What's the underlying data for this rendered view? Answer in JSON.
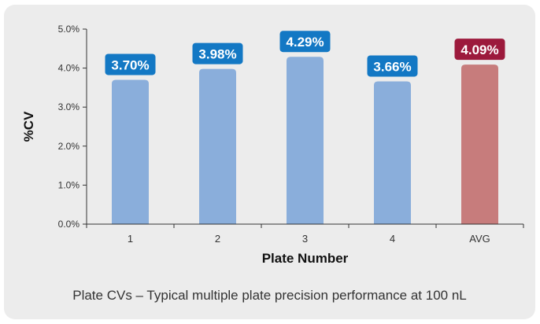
{
  "chart_data": {
    "type": "bar",
    "categories": [
      "1",
      "2",
      "3",
      "4",
      "AVG"
    ],
    "values": [
      3.7,
      3.98,
      4.29,
      3.66,
      4.09
    ],
    "data_labels": [
      "3.70%",
      "3.98%",
      "4.29%",
      "3.66%",
      "4.09%"
    ],
    "xlabel": "Plate Number",
    "ylabel": "%CV",
    "ylim": [
      0,
      5.0
    ],
    "yticks": [
      "0.0%",
      "1.0%",
      "2.0%",
      "3.0%",
      "4.0%",
      "5.0%"
    ],
    "grid": false,
    "caption": "Plate CVs – Typical multiple plate precision performance at 100 nL",
    "colors": {
      "bar": "#8aaedb",
      "bar_avg": "#c77c7c",
      "label_bg": "#1378c4",
      "label_bg_avg": "#9c1a3c",
      "label_text": "#ffffff",
      "axis": "#333333"
    }
  }
}
